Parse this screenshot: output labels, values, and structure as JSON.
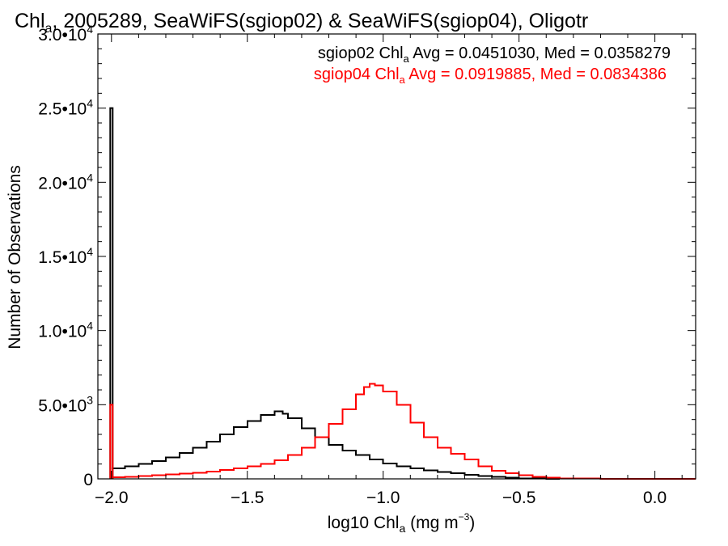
{
  "chart_data": {
    "type": "line",
    "title_main": "Chl",
    "title_sub": "a",
    "title_rest": ", 2005289, SeaWiFS(sgiop02) & SeaWiFS(sgiop04), Oligotr",
    "xlabel_main": "log10 Chl",
    "xlabel_sub": "a",
    "xlabel_rest": " (mg m",
    "xlabel_sup": "−3",
    "xlabel_end": ")",
    "ylabel": "Number of Observations",
    "xlim": [
      -2.05,
      0.15
    ],
    "ylim": [
      0,
      30000
    ],
    "x_ticks": [
      {
        "v": -2.0,
        "label": "−2.0"
      },
      {
        "v": -1.5,
        "label": "−1.5"
      },
      {
        "v": -1.0,
        "label": "−1.0"
      },
      {
        "v": -0.5,
        "label": "−0.5"
      },
      {
        "v": 0.0,
        "label": "0.0"
      }
    ],
    "y_ticks": [
      {
        "v": 0,
        "mant": "0",
        "exp": ""
      },
      {
        "v": 5000,
        "mant": "5.0•10",
        "exp": "3"
      },
      {
        "v": 10000,
        "mant": "1.0•10",
        "exp": "4"
      },
      {
        "v": 15000,
        "mant": "1.5•10",
        "exp": "4"
      },
      {
        "v": 20000,
        "mant": "2.0•10",
        "exp": "4"
      },
      {
        "v": 25000,
        "mant": "2.5•10",
        "exp": "4"
      },
      {
        "v": 30000,
        "mant": "3.0•10",
        "exp": "4"
      }
    ],
    "grid": false,
    "legend_position": "top-right",
    "series": [
      {
        "legend": {
          "pre": "sgiop02 Chl",
          "sub": "a",
          "post": " Avg = 0.0451030, Med = 0.0358279"
        },
        "color": "#000000",
        "spike": {
          "x": -2.0,
          "y": 25000
        },
        "points": [
          [
            -2.0,
            700
          ],
          [
            -1.95,
            850
          ],
          [
            -1.9,
            1000
          ],
          [
            -1.85,
            1200
          ],
          [
            -1.8,
            1450
          ],
          [
            -1.75,
            1750
          ],
          [
            -1.7,
            2100
          ],
          [
            -1.65,
            2500
          ],
          [
            -1.6,
            3000
          ],
          [
            -1.55,
            3500
          ],
          [
            -1.5,
            3900
          ],
          [
            -1.45,
            4300
          ],
          [
            -1.4,
            4550
          ],
          [
            -1.37,
            4400
          ],
          [
            -1.35,
            4100
          ],
          [
            -1.3,
            3400
          ],
          [
            -1.25,
            2800
          ],
          [
            -1.2,
            2300
          ],
          [
            -1.15,
            1900
          ],
          [
            -1.1,
            1600
          ],
          [
            -1.05,
            1300
          ],
          [
            -1.0,
            1050
          ],
          [
            -0.95,
            850
          ],
          [
            -0.9,
            700
          ],
          [
            -0.85,
            580
          ],
          [
            -0.8,
            470
          ],
          [
            -0.75,
            370
          ],
          [
            -0.7,
            280
          ],
          [
            -0.65,
            200
          ],
          [
            -0.6,
            130
          ],
          [
            -0.55,
            80
          ],
          [
            -0.5,
            40
          ],
          [
            -0.45,
            20
          ],
          [
            -0.4,
            10
          ],
          [
            -0.35,
            0
          ]
        ]
      },
      {
        "legend": {
          "pre": "sgiop04 Chl",
          "sub": "a",
          "post": " Avg = 0.0919885, Med = 0.0834386"
        },
        "color": "#ff0000",
        "spike": {
          "x": -2.0,
          "y": 5000
        },
        "points": [
          [
            -2.0,
            100
          ],
          [
            -1.95,
            150
          ],
          [
            -1.9,
            200
          ],
          [
            -1.85,
            250
          ],
          [
            -1.8,
            300
          ],
          [
            -1.75,
            350
          ],
          [
            -1.7,
            400
          ],
          [
            -1.65,
            500
          ],
          [
            -1.6,
            600
          ],
          [
            -1.55,
            700
          ],
          [
            -1.5,
            850
          ],
          [
            -1.45,
            1000
          ],
          [
            -1.4,
            1250
          ],
          [
            -1.35,
            1600
          ],
          [
            -1.3,
            2100
          ],
          [
            -1.25,
            2800
          ],
          [
            -1.2,
            3700
          ],
          [
            -1.15,
            4700
          ],
          [
            -1.1,
            5700
          ],
          [
            -1.07,
            6200
          ],
          [
            -1.05,
            6400
          ],
          [
            -1.03,
            6300
          ],
          [
            -1.0,
            5900
          ],
          [
            -0.95,
            5000
          ],
          [
            -0.9,
            3800
          ],
          [
            -0.85,
            2800
          ],
          [
            -0.8,
            2100
          ],
          [
            -0.75,
            1700
          ],
          [
            -0.7,
            1300
          ],
          [
            -0.65,
            850
          ],
          [
            -0.6,
            550
          ],
          [
            -0.55,
            380
          ],
          [
            -0.5,
            250
          ],
          [
            -0.45,
            150
          ],
          [
            -0.4,
            80
          ],
          [
            -0.35,
            40
          ],
          [
            -0.3,
            20
          ],
          [
            -0.2,
            5
          ],
          [
            -0.1,
            0
          ],
          [
            0.15,
            0
          ]
        ]
      }
    ]
  }
}
